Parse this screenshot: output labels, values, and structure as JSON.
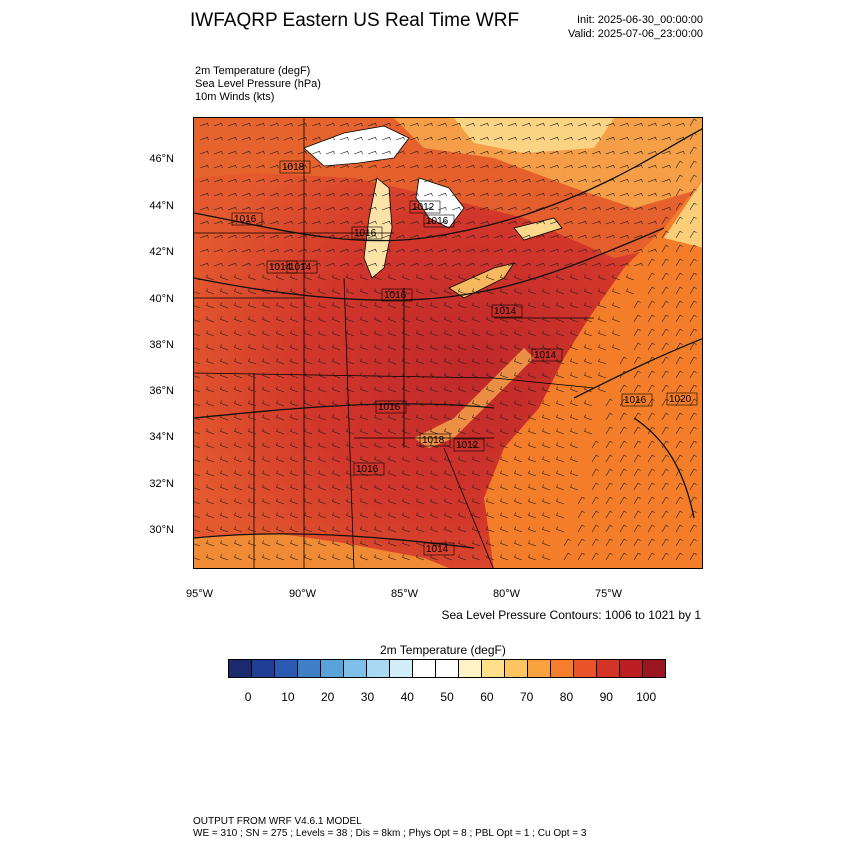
{
  "header": {
    "title": "IWFAQRP Eastern US Real Time WRF",
    "init": "Init: 2025-06-30_00:00:00",
    "valid": "Valid: 2025-07-06_23:00:00"
  },
  "fields": [
    "2m Temperature   (degF)",
    "Sea Level Pressure   (hPa)",
    "10m Winds   (kts)"
  ],
  "axes": {
    "lat_labels": [
      "46°N",
      "44°N",
      "42°N",
      "40°N",
      "38°N",
      "36°N",
      "34°N",
      "32°N",
      "30°N"
    ],
    "lon_labels": [
      "95°W",
      "90°W",
      "85°W",
      "80°W",
      "75°W"
    ]
  },
  "contour_info": "Sea Level Pressure Contours: 1006 to 1021 by 1",
  "isobar_labels": [
    "1018",
    "1016",
    "1016",
    "1016",
    "1014",
    "1012",
    "1016",
    "1014",
    "1014",
    "1016",
    "1012",
    "1018",
    "1016",
    "1014",
    "1016",
    "1020",
    "1014"
  ],
  "colorbar": {
    "title": "2m Temperature  (degF)",
    "labels": [
      "0",
      "10",
      "20",
      "30",
      "40",
      "50",
      "60",
      "70",
      "80",
      "90",
      "100"
    ],
    "colors": [
      "#1a2a6c",
      "#203f94",
      "#2a5bb0",
      "#3f7fc6",
      "#5aa2da",
      "#7fc0ea",
      "#a8d8f2",
      "#d2ecf8",
      "#ffffff",
      "#ffffff",
      "#fff2c4",
      "#fee08b",
      "#fdc462",
      "#f9a23f",
      "#f57d2c",
      "#e8532a",
      "#d43327",
      "#bb1f24",
      "#9a1720"
    ]
  },
  "footer": {
    "line1": "OUTPUT FROM WRF V4.6.1 MODEL",
    "line2": "WE = 310 ; SN = 275 ; Levels = 38 ; Dis = 8km ; Phys Opt = 8 ; PBL Opt = 1 ; Cu Opt = 3"
  }
}
